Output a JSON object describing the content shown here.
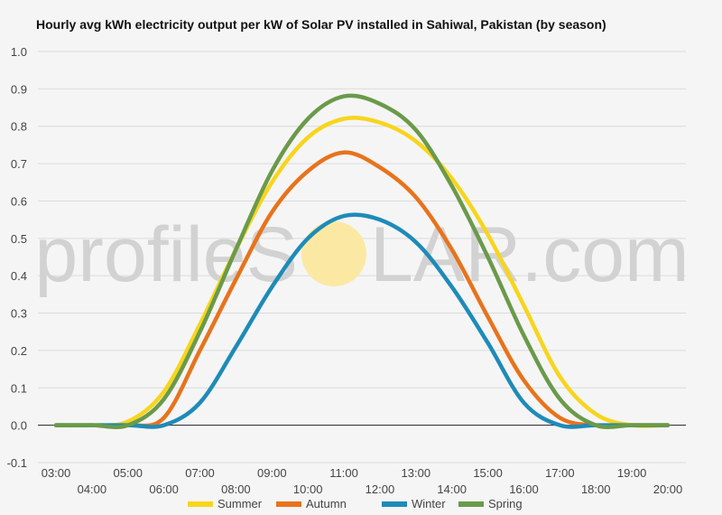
{
  "chart_data": {
    "type": "line",
    "title": "Hourly avg kWh electricity output per kW of Solar PV installed in Sahiwal, Pakistan (by season)",
    "xlabel": "",
    "ylabel": "",
    "ylim": [
      -0.1,
      1.0
    ],
    "yticks": [
      "1.0",
      "0.9",
      "0.8",
      "0.7",
      "0.6",
      "0.5",
      "0.4",
      "0.3",
      "0.2",
      "0.1",
      "0.0",
      "-0.1"
    ],
    "x": [
      "03:00",
      "04:00",
      "05:00",
      "06:00",
      "07:00",
      "08:00",
      "09:00",
      "10:00",
      "11:00",
      "12:00",
      "13:00",
      "14:00",
      "15:00",
      "16:00",
      "17:00",
      "18:00",
      "19:00",
      "20:00"
    ],
    "grid": true,
    "legend_position": "bottom",
    "series": [
      {
        "name": "Summer",
        "color": "#f7d51d",
        "values": [
          0.0,
          0.0,
          0.01,
          0.09,
          0.27,
          0.47,
          0.65,
          0.77,
          0.82,
          0.81,
          0.76,
          0.66,
          0.51,
          0.32,
          0.13,
          0.03,
          0.0,
          0.0
        ]
      },
      {
        "name": "Autumn",
        "color": "#e8731c",
        "values": [
          0.0,
          0.0,
          0.0,
          0.02,
          0.2,
          0.39,
          0.57,
          0.68,
          0.73,
          0.69,
          0.61,
          0.47,
          0.29,
          0.12,
          0.02,
          0.0,
          0.0,
          0.0
        ]
      },
      {
        "name": "Winter",
        "color": "#1e8bb8",
        "values": [
          0.0,
          0.0,
          0.0,
          0.0,
          0.06,
          0.21,
          0.37,
          0.5,
          0.56,
          0.55,
          0.49,
          0.37,
          0.22,
          0.06,
          0.0,
          0.0,
          0.0,
          0.0
        ]
      },
      {
        "name": "Spring",
        "color": "#6a9a4a",
        "values": [
          0.0,
          0.0,
          0.0,
          0.07,
          0.25,
          0.47,
          0.68,
          0.82,
          0.88,
          0.86,
          0.79,
          0.64,
          0.45,
          0.24,
          0.07,
          0.0,
          0.0,
          0.0
        ]
      }
    ]
  },
  "watermark": {
    "left": "profileS",
    "right": "LAR.com",
    "sun_color": "#fbe9a3"
  }
}
